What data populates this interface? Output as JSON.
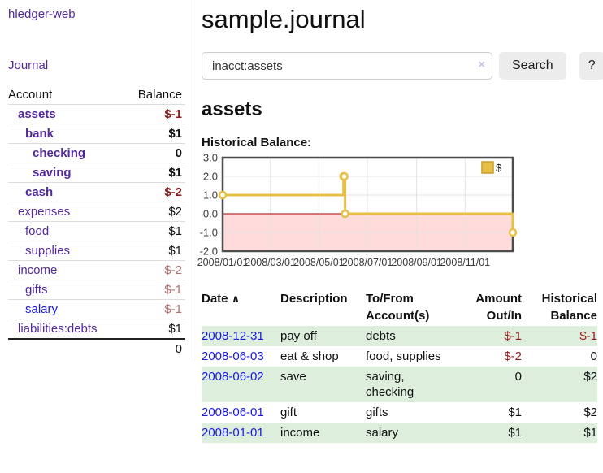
{
  "colors": {
    "purple_link": "#54289b",
    "blue_link": "#1a1ade",
    "negative_strong": "#8e1b1b",
    "negative_faint": "#b36b6b",
    "row_stripe_green": "#ddeedd",
    "chart_gold": "#e8bf45",
    "chart_negative_region": "#ffdcdc",
    "chart_zero_line": "#a40000"
  },
  "sidebar": {
    "title": "hledger-web",
    "nav_journal": "Journal",
    "header": {
      "account": "Account",
      "balance": "Balance"
    },
    "accounts": [
      {
        "name": "assets",
        "depth": 0,
        "emph": true,
        "balance": "$-1",
        "neg": "strong"
      },
      {
        "name": "bank",
        "depth": 1,
        "emph": true,
        "balance": "$1"
      },
      {
        "name": "checking",
        "depth": 2,
        "emph": true,
        "balance": "0"
      },
      {
        "name": "saving",
        "depth": 2,
        "emph": true,
        "balance": "$1"
      },
      {
        "name": "cash",
        "depth": 1,
        "emph": true,
        "balance": "$-2",
        "neg": "strong"
      },
      {
        "name": "expenses",
        "depth": 0,
        "emph": false,
        "balance": "$2"
      },
      {
        "name": "food",
        "depth": 1,
        "emph": false,
        "balance": "$1"
      },
      {
        "name": "supplies",
        "depth": 1,
        "emph": false,
        "balance": "$1"
      },
      {
        "name": "income",
        "depth": 0,
        "emph": false,
        "balance": "$-2",
        "neg": "faint"
      },
      {
        "name": "gifts",
        "depth": 1,
        "emph": false,
        "balance": "$-1",
        "neg": "faint"
      },
      {
        "name": "salary",
        "depth": 1,
        "emph": false,
        "balance": "$-1",
        "neg": "faint",
        "link": "blue"
      },
      {
        "name": "liabilities:debts",
        "depth": 0,
        "emph": false,
        "balance": "$1"
      }
    ],
    "total": "0"
  },
  "main": {
    "title": "sample.journal",
    "search": {
      "value": "inacct:assets",
      "clear_icon": "×",
      "button": "Search",
      "help_button": "?"
    },
    "account_heading": "assets",
    "chart_label": "Historical Balance:"
  },
  "chart_data": {
    "type": "line",
    "subtype": "step",
    "title": "Historical Balance",
    "series": [
      {
        "name": "$",
        "points": [
          [
            "2008-01-01",
            1
          ],
          [
            "2008-06-01",
            2
          ],
          [
            "2008-06-02",
            2
          ],
          [
            "2008-06-03",
            0
          ],
          [
            "2008-12-31",
            -1
          ]
        ],
        "color": "#e8bf45"
      }
    ],
    "x_range": [
      "2008-01-01",
      "2008-12-31"
    ],
    "x_ticks": [
      {
        "date": "2008-01-01",
        "label": "2008/01/01"
      },
      {
        "date": "2008-03-01",
        "label": "2008/03/01"
      },
      {
        "date": "2008-05-01",
        "label": "2008/05/01"
      },
      {
        "date": "2008-07-01",
        "label": "2008/07/01"
      },
      {
        "date": "2008-09-01",
        "label": "2008/09/01"
      },
      {
        "date": "2008-11-01",
        "label": "2008/11/01"
      }
    ],
    "ylim": [
      -2,
      3
    ],
    "y_ticks": [
      3,
      2,
      1,
      0,
      -1,
      -2
    ],
    "grid": true,
    "negative_region_color": "#ffdcdc",
    "zero_line_color": "#a40000",
    "legend": {
      "label": "$",
      "position": "top-right"
    }
  },
  "register": {
    "headers": {
      "date": "Date",
      "sort_icon": "∧",
      "description": "Description",
      "tofrom": "To/From Account(s)",
      "amount": "Amount Out/In",
      "balance": "Historical Balance"
    },
    "rows": [
      {
        "date": "2008-12-31",
        "description": "pay off",
        "accounts": "debts",
        "amount": "$-1",
        "amount_neg": true,
        "balance": "$-1",
        "balance_neg": true
      },
      {
        "date": "2008-06-03",
        "description": "eat & shop",
        "accounts": "food, supplies",
        "amount": "$-2",
        "amount_neg": true,
        "balance": "0",
        "balance_neg": false
      },
      {
        "date": "2008-06-02",
        "description": "save",
        "accounts": "saving, checking",
        "amount": "0",
        "amount_neg": false,
        "balance": "$2",
        "balance_neg": false
      },
      {
        "date": "2008-06-01",
        "description": "gift",
        "accounts": "gifts",
        "amount": "$1",
        "amount_neg": false,
        "balance": "$2",
        "balance_neg": false
      },
      {
        "date": "2008-01-01",
        "description": "income",
        "accounts": "salary",
        "amount": "$1",
        "amount_neg": false,
        "balance": "$1",
        "balance_neg": false
      }
    ]
  }
}
